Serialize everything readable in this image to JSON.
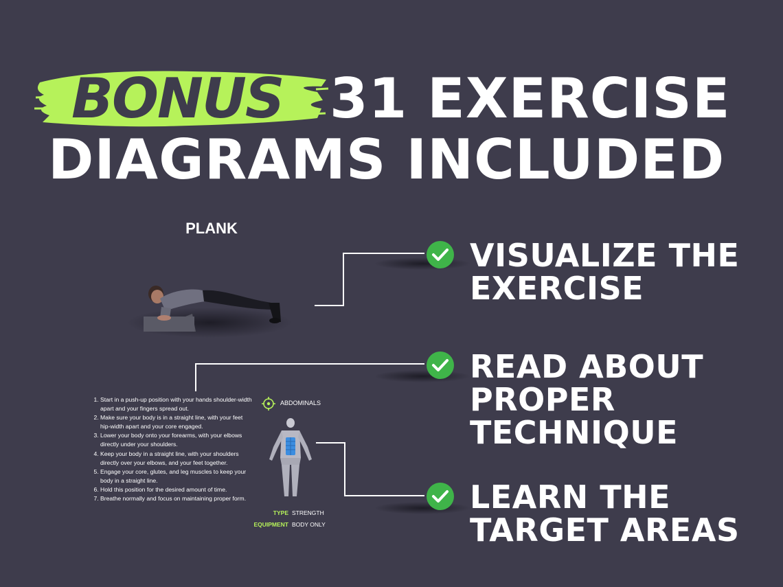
{
  "headline": {
    "bonus": "BONUS",
    "line1": "31 EXERCISE",
    "line2": "DIAGRAMS INCLUDED"
  },
  "colors": {
    "background": "#3e3c4c",
    "accent": "#b6f25a",
    "check": "#3fb449",
    "text": "#ffffff"
  },
  "exercise": {
    "title": "PLANK",
    "steps": [
      "Start in a push-up position with your hands shoulder-width apart and your fingers spread out.",
      "Make sure your body is in a straight line, with your feet hip-width apart and your core engaged.",
      "Lower your body onto your forearms, with your elbows directly under your shoulders.",
      "Keep your body in a straight line, with your shoulders directly over your elbows, and your feet together.",
      "Engage your core, glutes, and leg muscles to keep your body in a straight line.",
      "Hold this position for the desired amount of time.",
      "Breathe normally and focus on maintaining proper form."
    ],
    "target": "ABDOMINALS",
    "type_label": "TYPE",
    "type_value": "STRENGTH",
    "equipment_label": "EQUIPMENT",
    "equipment_value": "BODY ONLY"
  },
  "features": [
    {
      "line1": "VISUALIZE THE",
      "line2": "EXERCISE",
      "icon": "check-circle-icon"
    },
    {
      "line1": "READ ABOUT",
      "line2": "PROPER",
      "line3": "TECHNIQUE",
      "icon": "check-circle-icon"
    },
    {
      "line1": "LEARN THE",
      "line2": "TARGET AREAS",
      "icon": "check-circle-icon"
    }
  ]
}
